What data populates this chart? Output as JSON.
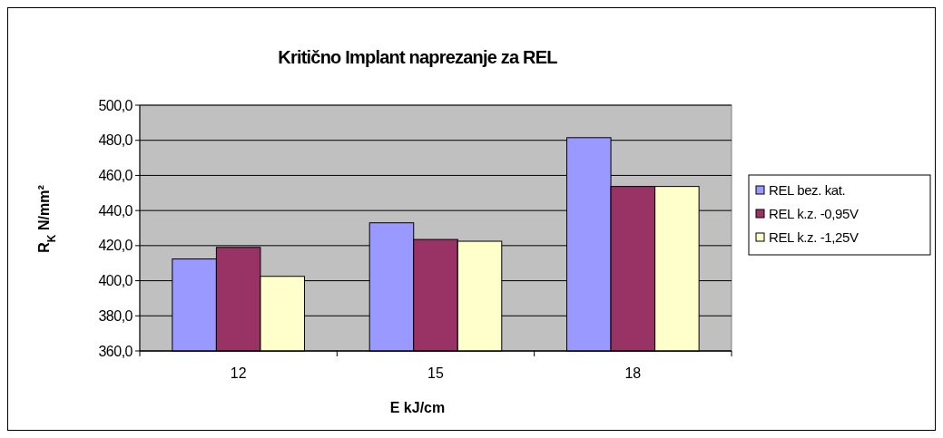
{
  "chart_data": {
    "type": "bar",
    "title": "Kritično Implant naprezanje za REL",
    "xlabel": "E  kJ/cm",
    "ylabel": "R$_{K}$ N/mm²",
    "categories": [
      "12",
      "15",
      "18"
    ],
    "series": [
      {
        "name": "REL bez. kat.",
        "color": "#9999ff",
        "values": [
          412.4,
          433,
          481.5
        ]
      },
      {
        "name": "REL k.z. -0,95V",
        "color": "#993366",
        "values": [
          419,
          423.5,
          453.7
        ]
      },
      {
        "name": "REL k.z. -1,25V",
        "color": "#ffffcc",
        "values": [
          402.5,
          422.5,
          453.7
        ]
      }
    ],
    "ylim": [
      360,
      500
    ],
    "yticks": [
      {
        "value": 360,
        "label": "360,0"
      },
      {
        "value": 380,
        "label": "380,0"
      },
      {
        "value": 400,
        "label": "400,0"
      },
      {
        "value": 420,
        "label": "420,0"
      },
      {
        "value": 440,
        "label": "440,0"
      },
      {
        "value": 460,
        "label": "460,0"
      },
      {
        "value": 480,
        "label": "480,0"
      },
      {
        "value": 500,
        "label": "500,0"
      }
    ],
    "grid": "y",
    "legend": "right"
  }
}
